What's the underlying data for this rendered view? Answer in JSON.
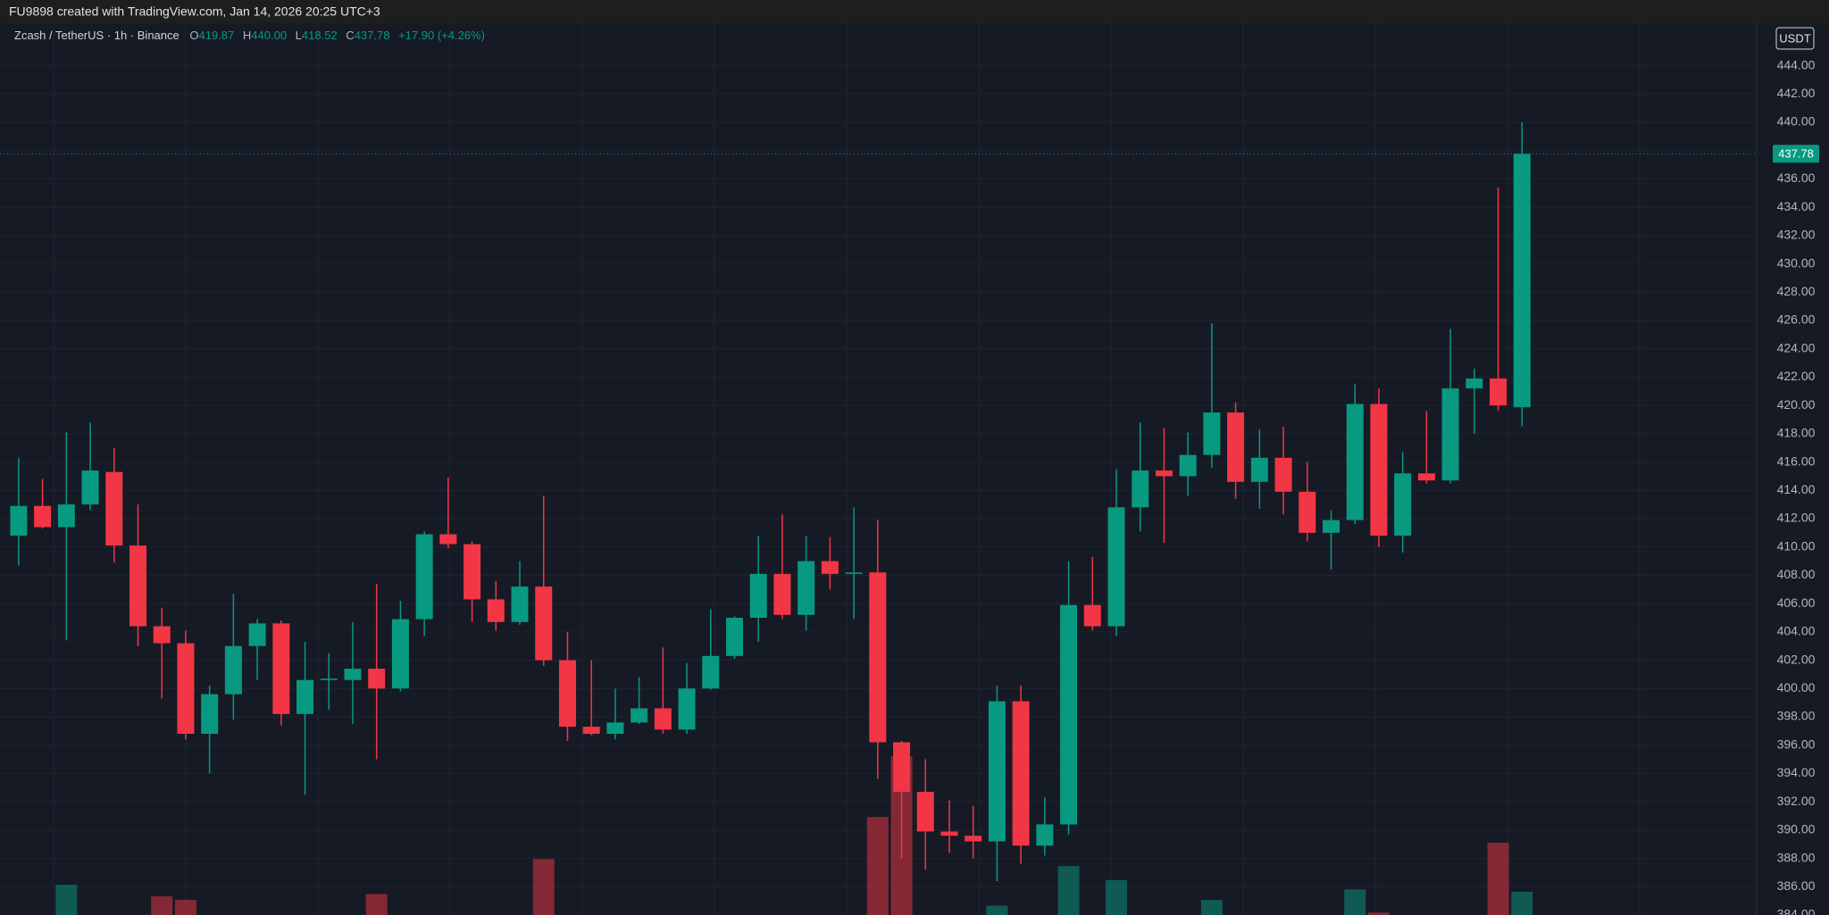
{
  "chart_data": {
    "type": "candlestick",
    "watermark": "FU9898 created with TradingView.com, Jan 14, 2026 20:25 UTC+3",
    "symbol": "Zcash / TetherUS · 1h · Binance",
    "ohlc_legend": [
      {
        "key": "O",
        "value": "419.87"
      },
      {
        "key": "H",
        "value": "440.00"
      },
      {
        "key": "L",
        "value": "418.52"
      },
      {
        "key": "C",
        "value": "437.78"
      }
    ],
    "change": "+17.90 (+4.26%)",
    "currency": "USDT",
    "up_color": "#089981",
    "down_color": "#f23645",
    "open": [
      410.8,
      412.9,
      411.4,
      413.0,
      415.3,
      410.1,
      404.4,
      403.2,
      396.8,
      399.6,
      403.0,
      404.6,
      398.2,
      400.6,
      400.6,
      401.4,
      400.0,
      404.9,
      410.9,
      410.2,
      406.3,
      404.7,
      407.2,
      402.0,
      397.3,
      396.8,
      397.6,
      398.6,
      397.1,
      400.0,
      402.3,
      405.0,
      408.1,
      405.2,
      409.0,
      408.1,
      408.2,
      396.2,
      392.7,
      389.9,
      389.6,
      389.2,
      399.1,
      388.9,
      390.4,
      405.9,
      404.4,
      412.8,
      415.4,
      415.0,
      416.5,
      419.5,
      414.6,
      416.3,
      413.9,
      411.0,
      411.9,
      420.1,
      410.8,
      415.2,
      414.7,
      421.2,
      421.9,
      419.87
    ],
    "high": [
      416.3,
      414.8,
      418.1,
      418.8,
      417.0,
      413.0,
      405.7,
      404.1,
      400.2,
      406.7,
      404.9,
      404.8,
      403.3,
      402.5,
      404.7,
      407.4,
      406.2,
      411.1,
      414.9,
      410.4,
      407.6,
      409.0,
      413.6,
      404.0,
      402.0,
      400.0,
      400.8,
      402.9,
      401.8,
      405.6,
      405.1,
      410.8,
      412.3,
      410.8,
      410.7,
      412.8,
      411.9,
      396.3,
      395.0,
      392.1,
      391.7,
      400.2,
      400.2,
      392.3,
      409.0,
      409.3,
      415.5,
      418.8,
      418.4,
      418.1,
      425.8,
      420.2,
      418.3,
      418.5,
      416.0,
      412.6,
      421.5,
      421.2,
      416.7,
      419.6,
      425.4,
      422.6,
      435.4,
      440.0
    ],
    "low": [
      408.7,
      411.3,
      403.4,
      412.6,
      408.9,
      403.0,
      399.3,
      396.4,
      394.0,
      397.8,
      400.6,
      397.4,
      392.5,
      398.5,
      397.5,
      395.0,
      399.8,
      403.7,
      409.9,
      404.7,
      404.1,
      404.5,
      401.6,
      396.3,
      396.7,
      396.4,
      397.5,
      396.8,
      396.8,
      399.9,
      402.1,
      403.3,
      404.9,
      404.1,
      407.0,
      404.9,
      393.6,
      388.0,
      387.2,
      388.4,
      388.0,
      386.4,
      387.6,
      388.2,
      389.7,
      404.1,
      403.7,
      411.1,
      410.3,
      413.6,
      415.6,
      413.4,
      412.7,
      412.3,
      410.4,
      408.4,
      411.6,
      410.0,
      409.6,
      414.5,
      414.5,
      418.0,
      419.6,
      418.52
    ],
    "close": [
      412.9,
      411.4,
      413.0,
      415.4,
      410.1,
      404.4,
      403.2,
      396.8,
      399.6,
      403.0,
      404.6,
      398.2,
      400.6,
      400.7,
      401.4,
      400.0,
      404.9,
      410.9,
      410.2,
      406.3,
      404.7,
      407.2,
      402.0,
      397.3,
      396.8,
      397.6,
      398.6,
      397.1,
      400.0,
      402.3,
      405.0,
      408.1,
      405.2,
      409.0,
      408.1,
      408.2,
      396.2,
      392.7,
      389.9,
      389.6,
      389.2,
      399.1,
      388.9,
      390.4,
      405.9,
      404.4,
      412.8,
      415.4,
      415.0,
      416.5,
      419.5,
      414.6,
      416.3,
      413.9,
      411.0,
      411.9,
      420.1,
      410.8,
      415.2,
      414.7,
      421.2,
      421.9,
      420.0,
      437.78
    ],
    "volume": [
      null,
      null,
      26,
      null,
      null,
      null,
      16,
      13,
      null,
      null,
      null,
      null,
      null,
      null,
      null,
      18,
      null,
      null,
      null,
      null,
      null,
      null,
      48,
      null,
      null,
      null,
      null,
      null,
      null,
      null,
      null,
      null,
      null,
      null,
      null,
      null,
      84,
      136,
      null,
      null,
      null,
      8,
      null,
      null,
      42,
      null,
      30,
      null,
      null,
      null,
      13,
      null,
      null,
      null,
      null,
      null,
      22,
      2,
      null,
      null,
      null,
      null,
      62,
      20
    ],
    "vlim": [
      0,
      100
    ],
    "ylim": [
      384,
      447
    ],
    "yticks": [
      {
        "value": 384,
        "label": "384.00"
      },
      {
        "value": 386,
        "label": "386.00"
      },
      {
        "value": 388,
        "label": "388.00"
      },
      {
        "value": 390,
        "label": "390.00"
      },
      {
        "value": 392,
        "label": "392.00"
      },
      {
        "value": 394,
        "label": "394.00"
      },
      {
        "value": 396,
        "label": "396.00"
      },
      {
        "value": 398,
        "label": "398.00"
      },
      {
        "value": 400,
        "label": "400.00"
      },
      {
        "value": 402,
        "label": "402.00"
      },
      {
        "value": 404,
        "label": "404.00"
      },
      {
        "value": 406,
        "label": "406.00"
      },
      {
        "value": 408,
        "label": "408.00"
      },
      {
        "value": 410,
        "label": "410.00"
      },
      {
        "value": 412,
        "label": "412.00"
      },
      {
        "value": 414,
        "label": "414.00"
      },
      {
        "value": 416,
        "label": "416.00"
      },
      {
        "value": 418,
        "label": "418.00"
      },
      {
        "value": 420,
        "label": "420.00"
      },
      {
        "value": 422,
        "label": "422.00"
      },
      {
        "value": 424,
        "label": "424.00"
      },
      {
        "value": 426,
        "label": "426.00"
      },
      {
        "value": 428,
        "label": "428.00"
      },
      {
        "value": 430,
        "label": "430.00"
      },
      {
        "value": 432,
        "label": "432.00"
      },
      {
        "value": 434,
        "label": "434.00"
      },
      {
        "value": 436,
        "label": "436.00"
      },
      {
        "value": 438,
        "label": "438.00"
      },
      {
        "value": 440,
        "label": "440.00"
      },
      {
        "value": 442,
        "label": "442.00"
      },
      {
        "value": 444,
        "label": "444.00"
      }
    ],
    "grid": true
  }
}
